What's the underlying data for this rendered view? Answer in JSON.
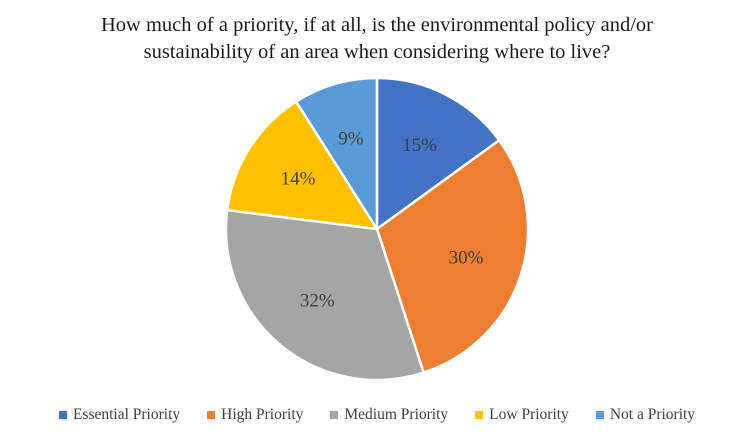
{
  "chart_data": {
    "type": "pie",
    "title": "How much of a priority, if at all, is the environmental policy and/or sustainability of an area when considering where to live?",
    "categories": [
      "Essential Priority",
      "High Priority",
      "Medium Priority",
      "Low Priority",
      "Not a Priority"
    ],
    "values": [
      15,
      30,
      32,
      14,
      9
    ],
    "data_labels": [
      "15%",
      "30%",
      "32%",
      "14%",
      "9%"
    ],
    "colors": [
      "#4472C4",
      "#ED7D31",
      "#A5A5A5",
      "#FFC000",
      "#5B9BD5"
    ],
    "start_angle_deg": 0,
    "direction": "clockwise",
    "slice_border_color": "#FFFFFF",
    "label_color": "#404040",
    "title_color": "#1A1A1A",
    "background": "#FFFFFF",
    "legend_position": "bottom"
  }
}
